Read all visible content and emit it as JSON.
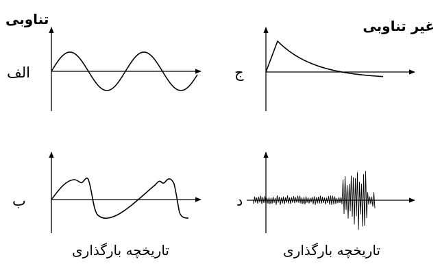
{
  "headings": {
    "periodic": "تناوبی",
    "non_periodic": "غیر تناوبی"
  },
  "panels": {
    "a": {
      "label": "الف",
      "group": "periodic",
      "signal": "sine"
    },
    "b": {
      "label": "ب",
      "group": "periodic",
      "signal": "periodic-sawtooth-with-peaks"
    },
    "c": {
      "label": "ج",
      "group": "non_periodic",
      "signal": "impulse-exponential-decay"
    },
    "d": {
      "label": "د",
      "group": "non_periodic",
      "signal": "random-noise-burst"
    }
  },
  "captions": {
    "left": "تاریخچه بارگذاری",
    "right": "تاریخچه بارگذاری"
  },
  "colors": {
    "ink": "#000000",
    "background": "#ffffff"
  }
}
